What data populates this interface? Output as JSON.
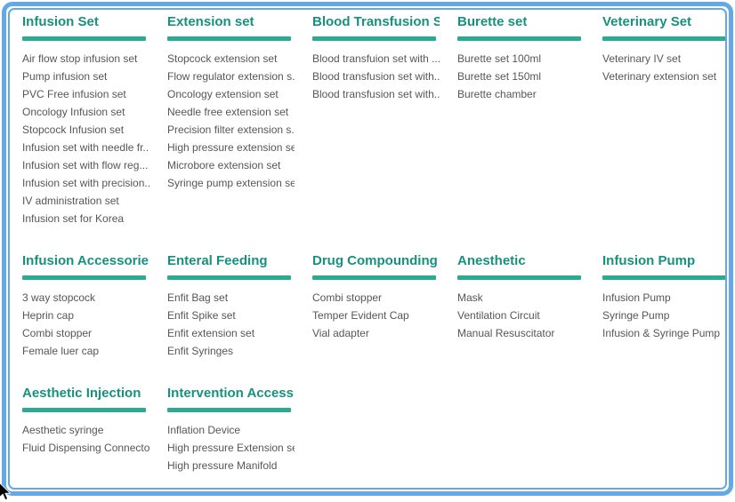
{
  "theme": {
    "border_blue": "#64a9e5",
    "heading_teal": "#17917f",
    "underline_teal": "#2cab92",
    "item_gray": "#565656"
  },
  "categories": [
    {
      "title": "Infusion Set",
      "items": [
        "Air flow stop infusion set",
        "Pump infusion set",
        "PVC Free infusion set",
        "Oncology Infusion set",
        "Stopcock Infusion set",
        "Infusion set with needle fr...",
        "Infusion set with flow reg...",
        "Infusion set with precision...",
        "IV administration set",
        "Infusion set for Korea"
      ]
    },
    {
      "title": "Extension set",
      "items": [
        "Stopcock extension set",
        "Flow regulator extension s...",
        "Oncology extension set",
        "Needle free extension set",
        "Precision filter extension s...",
        "High pressure extension set",
        "Microbore extension set",
        "Syringe pump extension set"
      ]
    },
    {
      "title": "Blood Transfusion Set",
      "items": [
        "Blood transfuion set with ...",
        "Blood transfusion set with...",
        "Blood transfusion set with..."
      ]
    },
    {
      "title": "Burette set",
      "items": [
        "Burette set 100ml",
        "Burette set 150ml",
        "Burette chamber"
      ]
    },
    {
      "title": "Veterinary Set",
      "items": [
        "Veterinary IV set",
        "Veterinary extension set"
      ]
    },
    {
      "title": "Infusion Accessories",
      "items": [
        "3 way stopcock",
        "Heprin cap",
        "Combi stopper",
        "Female luer cap"
      ]
    },
    {
      "title": "Enteral Feeding",
      "items": [
        "Enfit Bag set",
        "Enfit Spike set",
        "Enfit extension set",
        "Enfit Syringes"
      ]
    },
    {
      "title": "Drug Compounding",
      "items": [
        "Combi stopper",
        "Temper Evident Cap",
        "Vial adapter"
      ]
    },
    {
      "title": "Anesthetic",
      "items": [
        "Mask",
        "Ventilation Circuit",
        "Manual Resuscitator"
      ]
    },
    {
      "title": "Infusion Pump",
      "items": [
        "Infusion Pump",
        "Syringe Pump",
        "Infusion & Syringe Pump"
      ]
    },
    {
      "title": "Aesthetic Injection",
      "items": [
        "Aesthetic syringe",
        "Fluid Dispensing Connector"
      ]
    },
    {
      "title": "Intervention Access...",
      "items": [
        "Inflation Device",
        "High pressure Extension set",
        "High pressure Manifold"
      ]
    }
  ]
}
